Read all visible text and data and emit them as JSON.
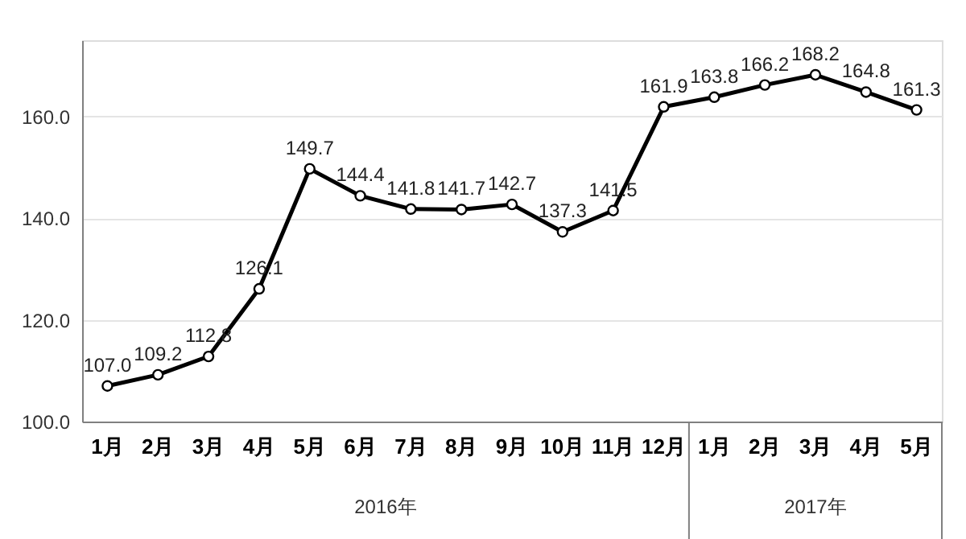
{
  "chart_data": {
    "type": "line",
    "categories": [
      "1月",
      "2月",
      "3月",
      "4月",
      "5月",
      "6月",
      "7月",
      "8月",
      "9月",
      "10月",
      "11月",
      "12月",
      "1月",
      "2月",
      "3月",
      "4月",
      "5月"
    ],
    "series": [
      {
        "color": "#000000",
        "values": [
          107.0,
          109.2,
          112.8,
          126.1,
          149.7,
          144.4,
          141.8,
          141.7,
          142.7,
          137.3,
          141.5,
          161.9,
          163.8,
          166.2,
          168.2,
          164.8,
          161.3
        ]
      }
    ],
    "annotations": [
      "2016年",
      "2017年"
    ],
    "ylim": [
      100,
      175
    ],
    "yticks": [
      {
        "value": 100,
        "label": "100.0"
      },
      {
        "value": 120,
        "label": "120.0"
      },
      {
        "value": 140,
        "label": "140.0"
      },
      {
        "value": 160,
        "label": "160.0"
      }
    ],
    "value_labels": [
      "107.0",
      "109.2",
      "112.8",
      "126.1",
      "149.7",
      "144.4",
      "141.8",
      "141.7",
      "142.7",
      "137.3",
      "141.5",
      "161.9",
      "163.8",
      "166.2",
      "168.2",
      "164.8",
      "161.3"
    ],
    "grid": "y",
    "marker": "circle",
    "line_style": "solid"
  }
}
